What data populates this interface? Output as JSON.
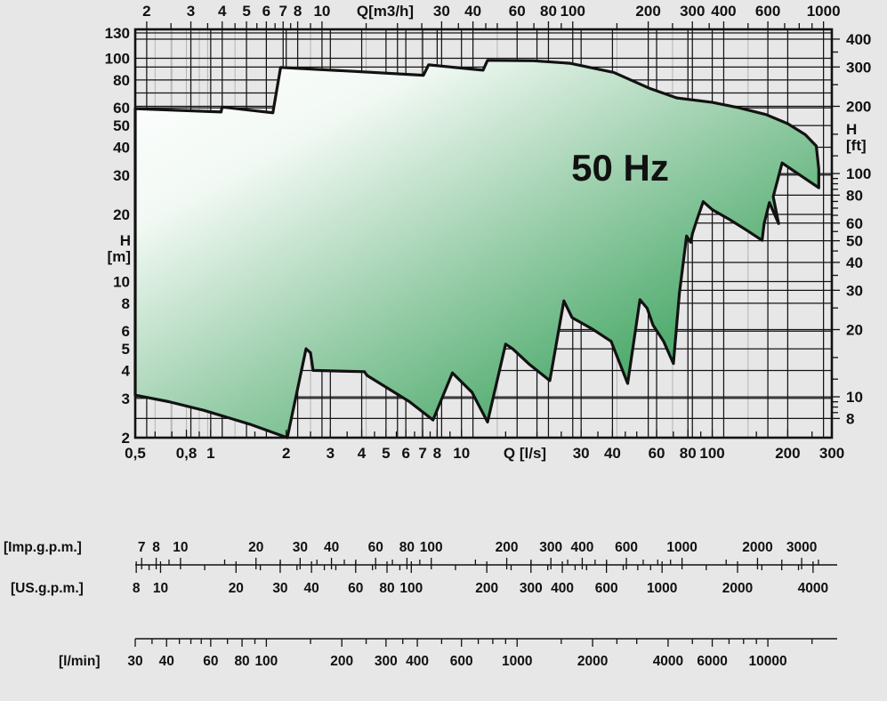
{
  "chart_data": {
    "type": "area",
    "title": "50 Hz",
    "background": "#e7e7e7",
    "axes": {
      "top": {
        "label": "Q[m3/h]",
        "labeled_ticks": [
          2,
          3,
          4,
          5,
          6,
          7,
          8,
          10,
          30,
          40,
          60,
          80,
          100,
          200,
          300,
          400,
          600,
          1000
        ],
        "minor_ticks": [
          2.5,
          3.5,
          4.5,
          5.5,
          6.5,
          7.5,
          9,
          15,
          20,
          25,
          35,
          45,
          50,
          70,
          90,
          150,
          250,
          350,
          500,
          700,
          800,
          900
        ]
      },
      "bottom": {
        "label": "Q [l/s]",
        "labeled_ticks": [
          {
            "v": 0.5,
            "t": "0,5"
          },
          {
            "v": 0.8,
            "t": "0,8"
          },
          {
            "v": 1,
            "t": "1"
          },
          {
            "v": 2,
            "t": "2"
          },
          {
            "v": 3,
            "t": "3"
          },
          {
            "v": 4,
            "t": "4"
          },
          {
            "v": 5,
            "t": "5"
          },
          {
            "v": 6,
            "t": "6"
          },
          {
            "v": 7,
            "t": "7"
          },
          {
            "v": 8,
            "t": "8"
          },
          {
            "v": 10,
            "t": "10"
          },
          {
            "v": 30,
            "t": "30"
          },
          {
            "v": 40,
            "t": "40"
          },
          {
            "v": 60,
            "t": "60"
          },
          {
            "v": 80,
            "t": "80"
          },
          {
            "v": 100,
            "t": "100"
          },
          {
            "v": 200,
            "t": "200"
          },
          {
            "v": 300,
            "t": "300"
          }
        ],
        "minor_ticks": [
          0.6,
          0.7,
          0.9,
          1.5,
          2.5,
          3.5,
          4.5,
          5.5,
          6.5,
          7.5,
          9,
          15,
          20,
          25,
          35,
          45,
          50,
          70,
          90,
          150,
          250
        ]
      },
      "left": {
        "label_lines": [
          "H",
          "[m]"
        ],
        "labeled_ticks": [
          2,
          3,
          4,
          5,
          6,
          8,
          10,
          20,
          30,
          40,
          50,
          60,
          80,
          100,
          130
        ],
        "range": [
          2,
          135
        ]
      },
      "right": {
        "label_lines": [
          "H",
          "[ft]"
        ],
        "labeled_ticks": [
          8,
          10,
          20,
          30,
          40,
          50,
          60,
          80,
          100,
          200,
          300,
          400
        ],
        "minor_ticks": [
          8.5,
          9,
          9.5,
          12,
          15,
          25,
          35,
          45,
          55,
          65,
          70,
          75,
          85,
          90,
          95,
          120,
          150,
          250,
          350
        ]
      }
    },
    "gridlines": {
      "v_ls": [
        1,
        2,
        3,
        4,
        5,
        6,
        7,
        8,
        10,
        20,
        30,
        40,
        60,
        80,
        100,
        200
      ],
      "v_m3h": [
        2,
        3,
        4,
        5,
        6,
        7,
        8,
        10,
        20,
        30,
        40,
        60,
        80,
        100,
        200,
        300,
        400,
        600,
        1000
      ],
      "v_minor_ls": [
        0.6,
        0.7,
        0.8,
        0.9
      ],
      "v_minor_m3h": [
        2.5,
        3.5,
        4.5,
        9,
        15,
        25,
        50,
        150,
        250,
        500
      ],
      "h_m": [
        3,
        4,
        5,
        6,
        8,
        10,
        20,
        30,
        40,
        50,
        60,
        70,
        80,
        100,
        130
      ],
      "h_ft": [
        8,
        10,
        20,
        30,
        40,
        50,
        60,
        80,
        100,
        200,
        300,
        400
      ]
    },
    "unit_conversions": {
      "ls_per_m3h": 0.27778,
      "ls_per_imp_gpm": 0.07577,
      "ls_per_us_gpm": 0.06309,
      "ls_per_lmin": 0.016667
    },
    "envelope_q_h": [
      [
        0.5,
        59.5
      ],
      [
        1.1,
        57.5
      ],
      [
        1.11,
        60.5
      ],
      [
        1.77,
        57
      ],
      [
        1.9,
        91
      ],
      [
        4,
        87
      ],
      [
        7.05,
        84
      ],
      [
        7.4,
        93.5
      ],
      [
        12.2,
        88.5
      ],
      [
        12.7,
        98
      ],
      [
        19.4,
        97.5
      ],
      [
        27,
        95
      ],
      [
        40.5,
        86.5
      ],
      [
        56,
        73.5
      ],
      [
        72,
        66.5
      ],
      [
        100,
        63.5
      ],
      [
        128,
        60
      ],
      [
        164,
        56
      ],
      [
        200,
        51
      ],
      [
        235,
        45.5
      ],
      [
        260,
        40.5
      ],
      [
        266,
        32
      ],
      [
        266,
        26.3
      ],
      [
        190,
        34
      ],
      [
        175,
        24
      ],
      [
        184,
        18.2
      ],
      [
        169,
        22.6
      ],
      [
        161,
        18.2
      ],
      [
        158,
        15.3
      ],
      [
        137,
        17
      ],
      [
        117,
        19
      ],
      [
        100,
        21
      ],
      [
        92,
        22.8
      ],
      [
        87,
        19
      ],
      [
        83.5,
        16.5
      ],
      [
        82,
        15
      ],
      [
        79,
        16
      ],
      [
        74,
        8.9
      ],
      [
        70,
        4.3
      ],
      [
        64,
        5.4
      ],
      [
        58,
        6.4
      ],
      [
        55,
        7.6
      ],
      [
        51.5,
        8.3
      ],
      [
        46,
        3.5
      ],
      [
        39.5,
        5.4
      ],
      [
        33.5,
        6.1
      ],
      [
        27.6,
        6.9
      ],
      [
        25.6,
        8.2
      ],
      [
        22.5,
        3.6
      ],
      [
        18.7,
        4.25
      ],
      [
        16,
        5
      ],
      [
        15,
        5.25
      ],
      [
        12.7,
        2.35
      ],
      [
        11,
        3.2
      ],
      [
        9.2,
        3.9
      ],
      [
        7.7,
        2.4
      ],
      [
        6.2,
        2.9
      ],
      [
        4.2,
        3.8
      ],
      [
        4.1,
        3.95
      ],
      [
        2.56,
        4
      ],
      [
        2.5,
        4.8
      ],
      [
        2.4,
        5
      ],
      [
        2.02,
        2
      ],
      [
        1.43,
        2.3
      ],
      [
        0.94,
        2.65
      ],
      [
        0.68,
        2.9
      ],
      [
        0.5,
        3.1
      ]
    ],
    "colors": {
      "fill_light": "#ffffff",
      "fill_mid": "#9ed0ae",
      "fill_deep": "#2f9e58",
      "outline": "#121212",
      "grid_major": "#141414",
      "grid_minor": "#b4b4b4"
    }
  },
  "rulers": {
    "imp": {
      "label": "[Imp.g.p.m.]",
      "labeled": [
        7,
        8,
        10,
        20,
        30,
        40,
        60,
        80,
        100,
        200,
        300,
        400,
        600,
        1000,
        2000,
        3000
      ],
      "minor": [
        9,
        15,
        25,
        35,
        45,
        50,
        70,
        90,
        150,
        250,
        350,
        450,
        500,
        700,
        800,
        900,
        1500,
        2500,
        3500
      ]
    },
    "us": {
      "label": "[US.g.p.m.]",
      "labeled": [
        8,
        10,
        20,
        30,
        40,
        60,
        80,
        100,
        200,
        300,
        400,
        600,
        1000,
        2000,
        4000
      ],
      "minor": [
        9,
        15,
        25,
        35,
        45,
        50,
        70,
        90,
        150,
        250,
        350,
        450,
        500,
        700,
        800,
        900,
        1500,
        2500,
        3000,
        3500
      ]
    },
    "lmin": {
      "label": "[l/min]",
      "labeled": [
        30,
        40,
        60,
        80,
        100,
        200,
        300,
        400,
        600,
        1000,
        2000,
        4000,
        6000,
        10000
      ],
      "minor": [
        35,
        45,
        50,
        55,
        70,
        90,
        150,
        250,
        350,
        500,
        700,
        800,
        900,
        1500,
        2500,
        3000,
        5000,
        7000,
        8000,
        9000,
        15000
      ]
    }
  }
}
